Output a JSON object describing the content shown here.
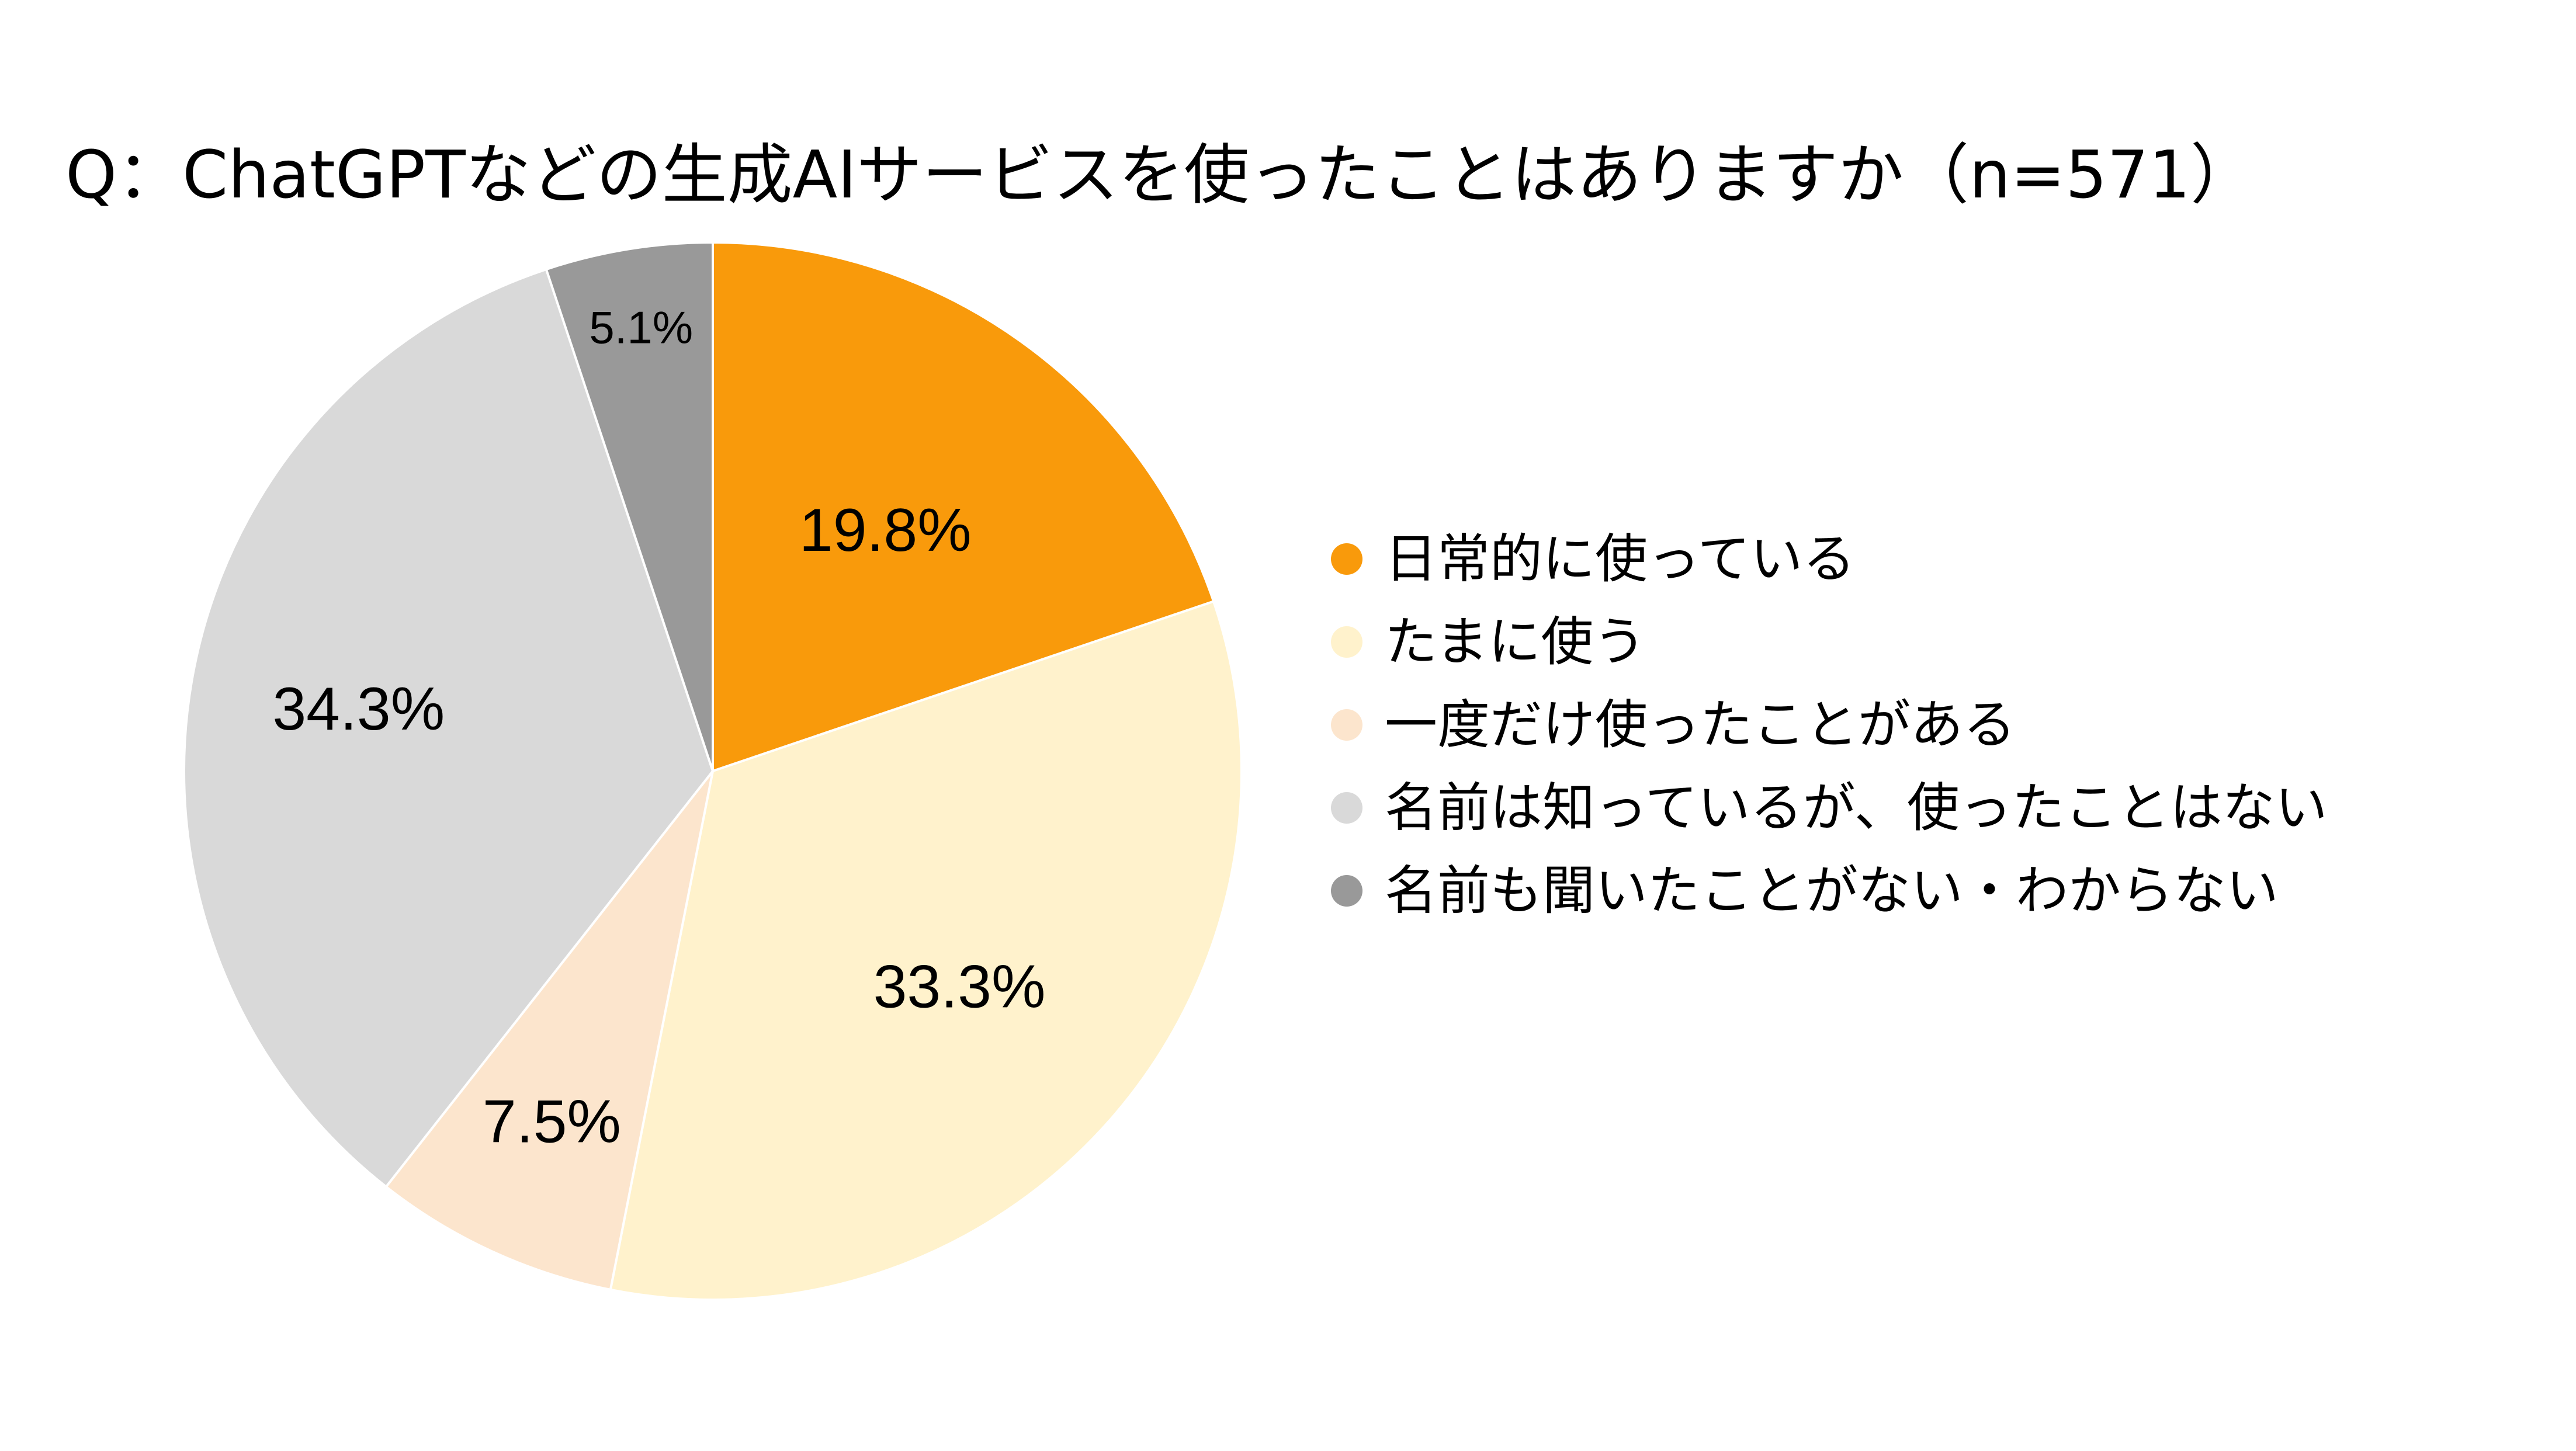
{
  "chart_data": {
    "type": "pie",
    "title": "Q：ChatGPTなどの生成AIサービスを使ったことはありますか（n=571）",
    "slices": [
      {
        "label": "日常的に使っている",
        "value": 19.8,
        "value_label": "19.8%",
        "color": "#F99A0B"
      },
      {
        "label": "たまに使う",
        "value": 33.3,
        "value_label": "33.3%",
        "color": "#FFF2CC"
      },
      {
        "label": "一度だけ使ったことがある",
        "value": 7.5,
        "value_label": "7.5%",
        "color": "#FCE5CD"
      },
      {
        "label": "名前は知っているが、使ったことはない",
        "value": 34.3,
        "value_label": "34.3%",
        "color": "#D9D9D9"
      },
      {
        "label": "名前も聞いたことがない・わからない",
        "value": 5.1,
        "value_label": "5.1%",
        "color": "#999999"
      }
    ],
    "start_angle": "12 o'clock",
    "direction": "clockwise",
    "legend_position": "right"
  }
}
